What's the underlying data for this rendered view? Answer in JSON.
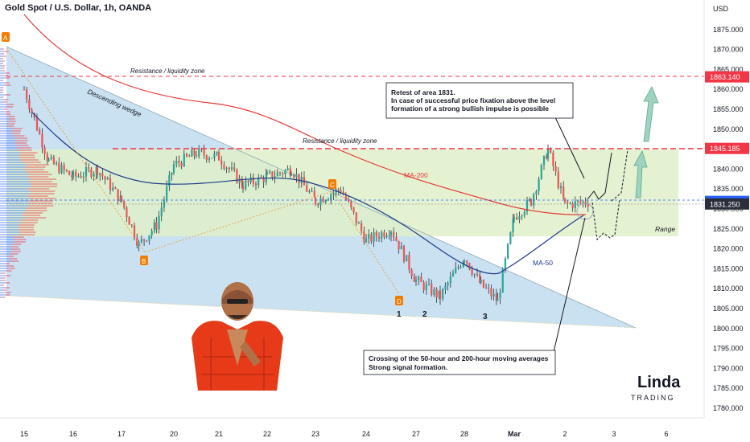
{
  "header": {
    "title": "Gold Spot / U.S. Dollar, 1h, OANDA"
  },
  "chart_data": {
    "type": "candlestick",
    "currency": "USD",
    "ylim": [
      1777,
      1881
    ],
    "y_ticks": [
      1780,
      1785,
      1790,
      1795,
      1800,
      1805,
      1810,
      1815,
      1820,
      1825,
      1830,
      1835,
      1840,
      1845,
      1850,
      1855,
      1860,
      1865,
      1870,
      1875
    ],
    "y_tick_labels": [
      "1780.000",
      "1785.000",
      "1790.000",
      "1795.000",
      "1800.000",
      "1805.000",
      "1810.000",
      "1815.000",
      "1820.000",
      "1825.000",
      "1830.000",
      "1835.000",
      "1840.000",
      "1845.000",
      "1850.000",
      "1855.000",
      "1860.000",
      "1865.000",
      "1870.000",
      "1875.000"
    ],
    "x_tick_labels": [
      "15",
      "16",
      "17",
      "20",
      "21",
      "22",
      "23",
      "24",
      "27",
      "28",
      "Mar",
      "2",
      "3",
      "6"
    ],
    "price_tags": [
      {
        "label": "1863.140",
        "value": 1863.14,
        "color": "#f23645"
      },
      {
        "label": "1845.185",
        "value": 1845.185,
        "color": "#f23645"
      },
      {
        "label": "1831.890",
        "value": 1831.89,
        "color": "#2962ff"
      },
      {
        "label": "1831.250",
        "value": 1831.25,
        "color": "#2a2e39"
      }
    ],
    "price_path": [
      {
        "x": "15",
        "v": 1860
      },
      {
        "x": "15",
        "v": 1842
      },
      {
        "x": "16",
        "v": 1838
      },
      {
        "x": "16",
        "v": 1840
      },
      {
        "x": "17",
        "v": 1832
      },
      {
        "x": "17",
        "v": 1821
      },
      {
        "x": "17",
        "v": 1826
      },
      {
        "x": "20",
        "v": 1841
      },
      {
        "x": "20",
        "v": 1844
      },
      {
        "x": "21",
        "v": 1843
      },
      {
        "x": "21",
        "v": 1836
      },
      {
        "x": "22",
        "v": 1838
      },
      {
        "x": "22",
        "v": 1840
      },
      {
        "x": "23",
        "v": 1832
      },
      {
        "x": "23",
        "v": 1835
      },
      {
        "x": "24",
        "v": 1822
      },
      {
        "x": "24",
        "v": 1825
      },
      {
        "x": "27",
        "v": 1812
      },
      {
        "x": "27",
        "v": 1808
      },
      {
        "x": "28",
        "v": 1818
      },
      {
        "x": "28",
        "v": 1811
      },
      {
        "x": "28",
        "v": 1807
      },
      {
        "x": "Mar",
        "v": 1828
      },
      {
        "x": "Mar",
        "v": 1832
      },
      {
        "x": "Mar",
        "v": 1845
      },
      {
        "x": "2",
        "v": 1831
      },
      {
        "x": "2",
        "v": 1831.9
      }
    ],
    "moving_averages": [
      {
        "name": "MA-200",
        "color": "#e53935"
      },
      {
        "name": "MA-50",
        "color": "#1e3a8a"
      }
    ],
    "annotations": {
      "resistance_top": "Resistance / liquidity zone",
      "resistance_mid": "Resistance / liquidity zone",
      "wedge": "Descending wedge",
      "range": "Range",
      "point_a": "A",
      "point_b": "B",
      "point_c": "C",
      "point_d": "D",
      "num_1": "1",
      "num_2": "2",
      "num_3": "3",
      "note_top": [
        "Retest of area 1831.",
        "In case of successful price fixation above the level",
        "formation of a strong bullish impulse is possible"
      ],
      "note_bottom": [
        "Crossing of the 50-hour and 200-hour moving averages",
        "Strong signal formation."
      ]
    },
    "colors": {
      "bull": "#26a69a",
      "bear": "#ef5350",
      "candle": "#131722",
      "wedge_fill": "#bfdcee",
      "range_fill": "#dff0c9",
      "arrow": "#7fc8a9"
    }
  },
  "logo": {
    "name": "Linda",
    "sub": "TRADING"
  }
}
